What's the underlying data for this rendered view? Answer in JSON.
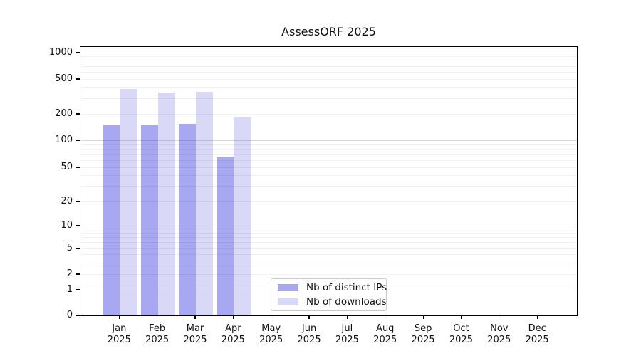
{
  "chart_data": {
    "type": "bar",
    "title": "AssessORF 2025",
    "xlabel": "",
    "ylabel": "",
    "months": [
      "Jan",
      "Feb",
      "Mar",
      "Apr",
      "May",
      "Jun",
      "Jul",
      "Aug",
      "Sep",
      "Oct",
      "Nov",
      "Dec"
    ],
    "year": "2025",
    "series": [
      {
        "name": "Nb of distinct IPs",
        "color": "#a7a7f2",
        "values": [
          147,
          147,
          155,
          64,
          0,
          0,
          0,
          0,
          0,
          0,
          0,
          0
        ]
      },
      {
        "name": "Nb of downloads",
        "color": "#d9d9f7",
        "values": [
          385,
          350,
          360,
          185,
          0,
          0,
          0,
          0,
          0,
          0,
          0,
          0
        ]
      }
    ],
    "yticks": [
      1000,
      500,
      200,
      100,
      50,
      20,
      10,
      5,
      2,
      1,
      0
    ],
    "yaxis_scale": "log-like (symlog: 0 at baseline, compressed below 10)",
    "ylim": [
      0,
      1150
    ],
    "grid": "horizontal; darker major lines at 1,10,100,1000; faint minor lines at 2-9 per decade; grid drawn over bars",
    "grid_major_color": "rgba(0,0,0,0.15)",
    "grid_minor_color": "rgba(0,0,0,0.05)",
    "legend_position": "inside bottom-center",
    "background_color": "#ffffff"
  }
}
